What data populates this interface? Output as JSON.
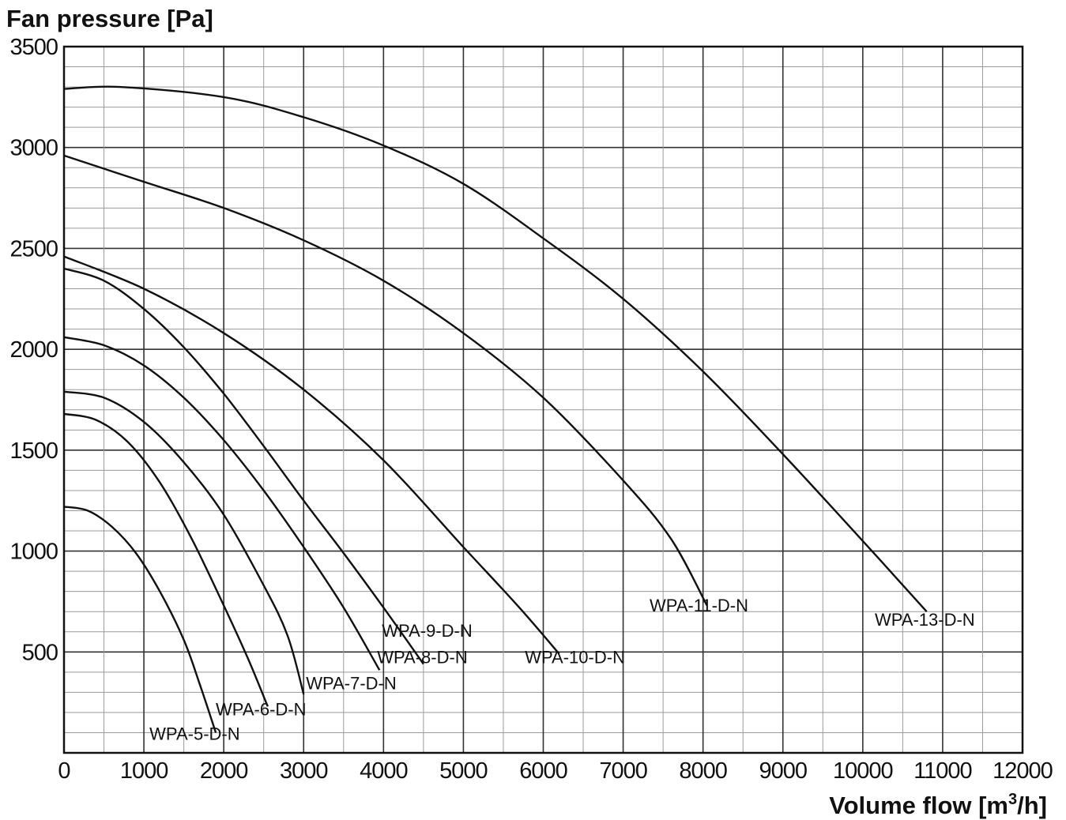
{
  "chart_data": {
    "type": "line",
    "ylabel": "Fan pressure  [Pa]",
    "xlabel_main": "Volume flow  [m",
    "xlabel_sup": "3",
    "xlabel_end": "/h]",
    "xlim": [
      0,
      12000
    ],
    "ylim": [
      0,
      3500
    ],
    "x_ticks": [
      0,
      1000,
      2000,
      3000,
      4000,
      5000,
      6000,
      7000,
      8000,
      9000,
      10000,
      11000,
      12000
    ],
    "y_ticks": [
      500,
      1000,
      1500,
      2000,
      2500,
      3000,
      3500
    ],
    "x_tick_labels": [
      "0",
      "1000",
      "2000",
      "3000",
      "4000",
      "5000",
      "6000",
      "7000",
      "8000",
      "9000",
      "10000",
      "11000",
      "12000"
    ],
    "y_tick_labels": [
      "500",
      "1000",
      "1500",
      "2000",
      "2500",
      "3000",
      "3500"
    ],
    "grid": true,
    "grid_x_minor_step": 500,
    "grid_y_minor_step": 100,
    "series": [
      {
        "name": "WPA-5-D-N",
        "points": [
          [
            0,
            1220
          ],
          [
            300,
            1200
          ],
          [
            600,
            1120
          ],
          [
            900,
            990
          ],
          [
            1200,
            800
          ],
          [
            1500,
            560
          ],
          [
            1700,
            340
          ],
          [
            1900,
            100
          ]
        ],
        "label_pos": [
          1070,
          65
        ]
      },
      {
        "name": "WPA-6-D-N",
        "points": [
          [
            0,
            1680
          ],
          [
            400,
            1650
          ],
          [
            800,
            1540
          ],
          [
            1200,
            1340
          ],
          [
            1600,
            1060
          ],
          [
            2000,
            730
          ],
          [
            2300,
            470
          ],
          [
            2550,
            230
          ]
        ],
        "label_pos": [
          1900,
          185
        ]
      },
      {
        "name": "WPA-7-D-N",
        "points": [
          [
            0,
            1790
          ],
          [
            500,
            1760
          ],
          [
            1000,
            1640
          ],
          [
            1500,
            1440
          ],
          [
            2000,
            1180
          ],
          [
            2500,
            830
          ],
          [
            2800,
            580
          ],
          [
            3000,
            290
          ]
        ],
        "label_pos": [
          3030,
          315
        ]
      },
      {
        "name": "WPA-8-D-N",
        "points": [
          [
            0,
            2060
          ],
          [
            500,
            2020
          ],
          [
            1000,
            1920
          ],
          [
            1500,
            1760
          ],
          [
            2000,
            1550
          ],
          [
            2500,
            1300
          ],
          [
            3000,
            1020
          ],
          [
            3500,
            720
          ],
          [
            3950,
            410
          ]
        ],
        "label_pos": [
          3920,
          445
        ]
      },
      {
        "name": "WPA-9-D-N",
        "points": [
          [
            0,
            2400
          ],
          [
            500,
            2340
          ],
          [
            1000,
            2200
          ],
          [
            1500,
            2010
          ],
          [
            2000,
            1780
          ],
          [
            2500,
            1520
          ],
          [
            3000,
            1250
          ],
          [
            3500,
            990
          ],
          [
            4000,
            720
          ],
          [
            4500,
            440
          ]
        ],
        "label_pos": [
          3980,
          575
        ]
      },
      {
        "name": "WPA-10-D-N",
        "points": [
          [
            0,
            2460
          ],
          [
            1000,
            2300
          ],
          [
            2000,
            2080
          ],
          [
            3000,
            1800
          ],
          [
            4000,
            1450
          ],
          [
            5000,
            1020
          ],
          [
            5700,
            720
          ],
          [
            6200,
            490
          ]
        ],
        "label_pos": [
          5770,
          445
        ]
      },
      {
        "name": "WPA-11-D-N",
        "points": [
          [
            0,
            2960
          ],
          [
            1000,
            2830
          ],
          [
            2000,
            2700
          ],
          [
            3000,
            2540
          ],
          [
            4000,
            2340
          ],
          [
            5000,
            2080
          ],
          [
            6000,
            1760
          ],
          [
            7000,
            1350
          ],
          [
            7600,
            1060
          ],
          [
            8050,
            730
          ]
        ],
        "label_pos": [
          7330,
          700
        ]
      },
      {
        "name": "WPA-13-D-N",
        "points": [
          [
            0,
            3290
          ],
          [
            700,
            3300
          ],
          [
            2000,
            3250
          ],
          [
            3000,
            3150
          ],
          [
            4000,
            3010
          ],
          [
            5000,
            2820
          ],
          [
            6000,
            2550
          ],
          [
            7000,
            2250
          ],
          [
            8000,
            1890
          ],
          [
            9000,
            1480
          ],
          [
            10000,
            1050
          ],
          [
            10800,
            700
          ]
        ],
        "label_pos": [
          10150,
          630
        ]
      }
    ]
  }
}
